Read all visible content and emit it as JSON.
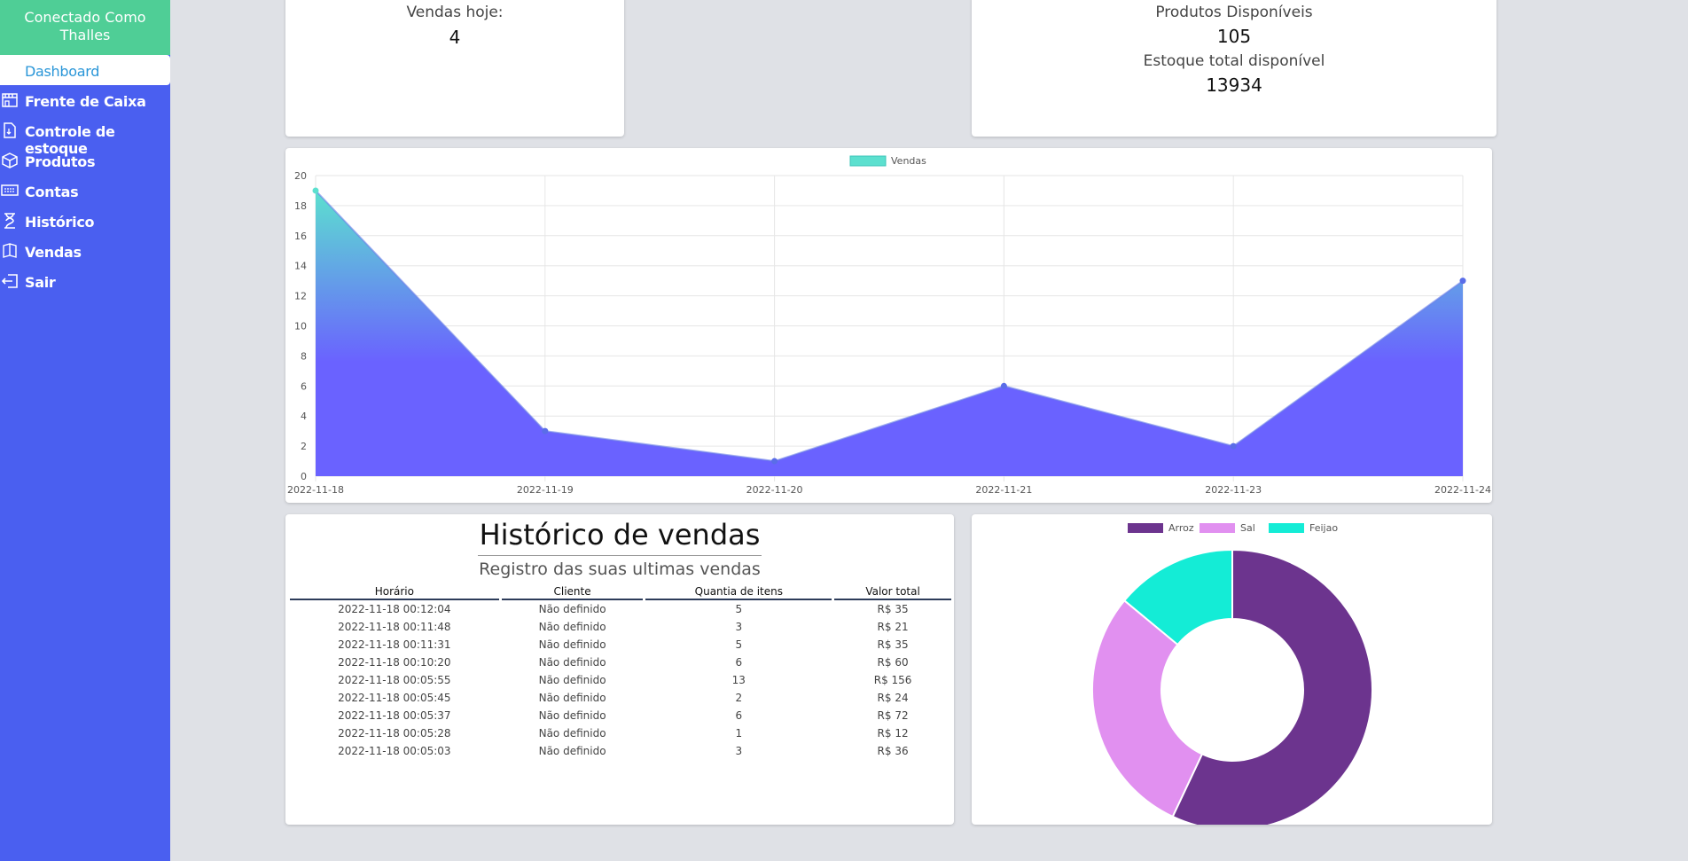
{
  "sidebar": {
    "header": "Conectado Como Thalles",
    "items": [
      {
        "label": "Dashboard",
        "icon": "dashboard-icon"
      },
      {
        "label": "Frente de Caixa",
        "icon": "store-icon"
      },
      {
        "label": "Controle de estoque",
        "icon": "file-icon"
      },
      {
        "label": "Produtos",
        "icon": "box-icon"
      },
      {
        "label": "Contas",
        "icon": "keyboard-icon"
      },
      {
        "label": "Histórico",
        "icon": "hourglass-icon"
      },
      {
        "label": "Vendas",
        "icon": "book-icon"
      },
      {
        "label": "Sair",
        "icon": "logout-icon"
      }
    ]
  },
  "stats": {
    "sales_today_label": "Vendas hoje:",
    "sales_today_value": "4",
    "products_label": "Produtos Disponíveis",
    "products_value": "105",
    "stock_label": "Estoque total disponível",
    "stock_value": "13934"
  },
  "history": {
    "title": "Histórico de vendas",
    "subtitle": "Registro das suas ultimas vendas",
    "columns": [
      "Horário",
      "Cliente",
      "Quantia de itens",
      "Valor total"
    ],
    "rows": [
      [
        "2022-11-18 00:12:04",
        "Não definido",
        "5",
        "R$ 35"
      ],
      [
        "2022-11-18 00:11:48",
        "Não definido",
        "3",
        "R$ 21"
      ],
      [
        "2022-11-18 00:11:31",
        "Não definido",
        "5",
        "R$ 35"
      ],
      [
        "2022-11-18 00:10:20",
        "Não definido",
        "6",
        "R$ 60"
      ],
      [
        "2022-11-18 00:05:55",
        "Não definido",
        "13",
        "R$ 156"
      ],
      [
        "2022-11-18 00:05:45",
        "Não definido",
        "2",
        "R$ 24"
      ],
      [
        "2022-11-18 00:05:37",
        "Não definido",
        "6",
        "R$ 72"
      ],
      [
        "2022-11-18 00:05:28",
        "Não definido",
        "1",
        "R$ 12"
      ],
      [
        "2022-11-18 00:05:03",
        "Não definido",
        "3",
        "R$ 36"
      ]
    ]
  },
  "colors": {
    "sidebar": "#4a5ff0",
    "sidebar_header": "#4fce96",
    "line_top": "#5ce0cf",
    "line_bottom": "#6a62ff",
    "arroz": "#6c348e",
    "sal": "#e190f0",
    "feijao": "#14ecd6"
  },
  "chart_data": [
    {
      "type": "area",
      "series": [
        {
          "name": "Vendas",
          "values": [
            19,
            3,
            1,
            6,
            2,
            13
          ]
        }
      ],
      "x": [
        "2022-11-18",
        "2022-11-19",
        "2022-11-20",
        "2022-11-21",
        "2022-11-23",
        "2022-11-24"
      ],
      "ylim": [
        0,
        20
      ],
      "yticks": [
        0,
        2,
        4,
        6,
        8,
        10,
        12,
        14,
        16,
        18,
        20
      ],
      "legend": "top",
      "grid": true
    },
    {
      "type": "pie",
      "donut": true,
      "labels": [
        "Arroz",
        "Sal",
        "Feijao"
      ],
      "values": [
        57,
        29,
        14
      ],
      "legend": "top"
    }
  ]
}
